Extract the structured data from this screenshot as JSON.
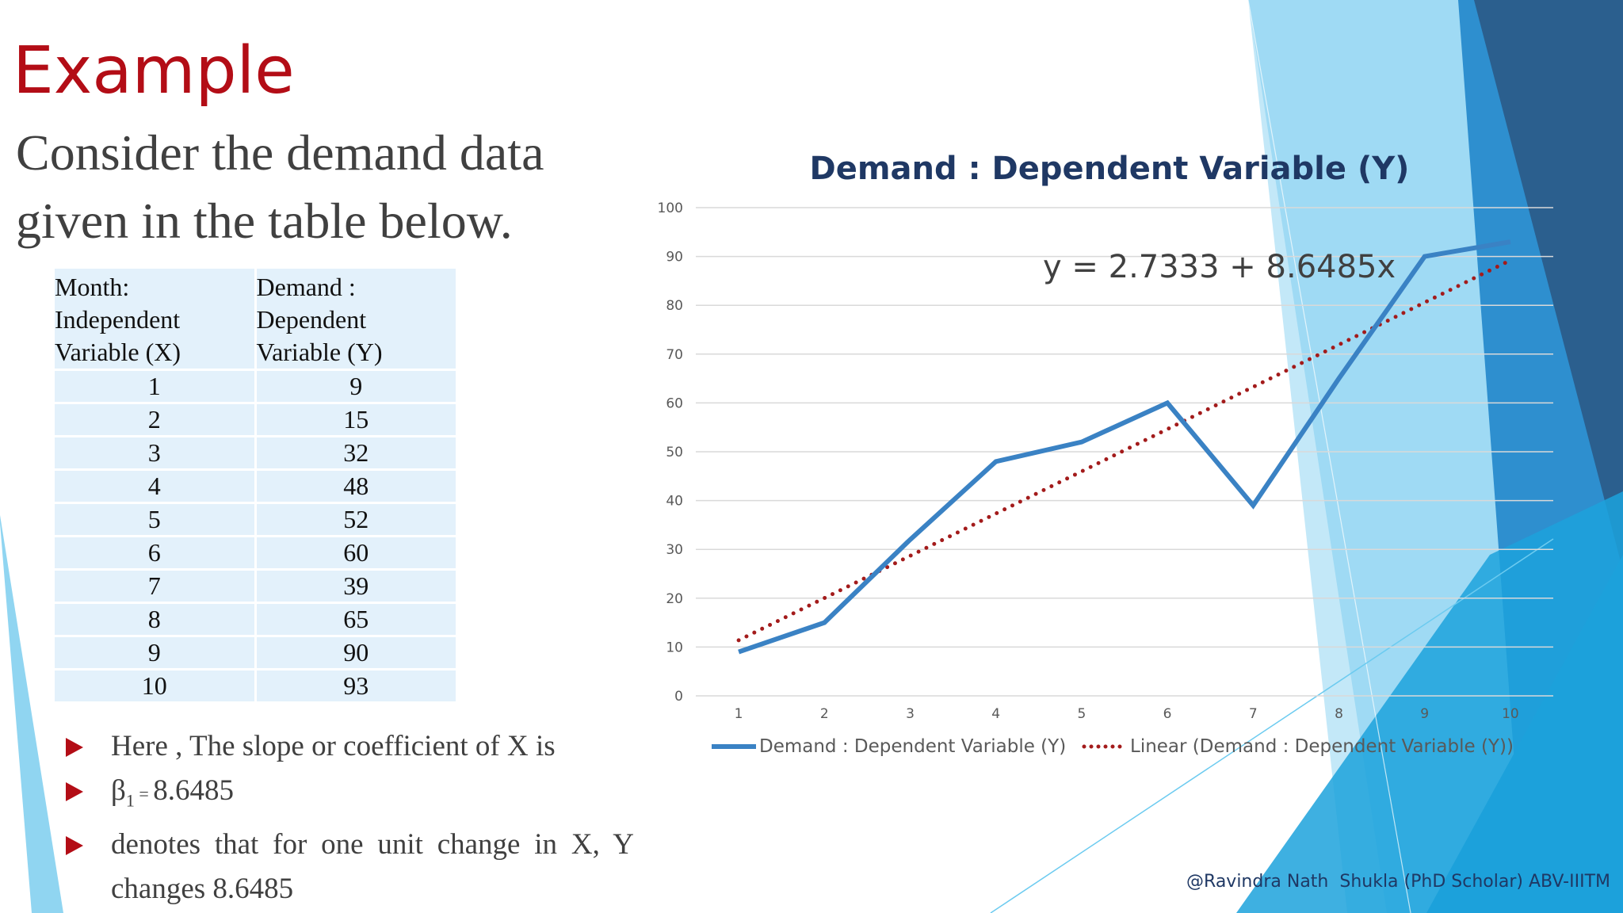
{
  "slide": {
    "title": "Example",
    "intro": "Consider the demand data given in the table below.",
    "footer": "@Ravindra Nath  Shukla (PhD Scholar) ABV-IIITM"
  },
  "table": {
    "headers": [
      "Month: Independent Variable (X)",
      "Demand : Dependent Variable (Y)"
    ],
    "rows": [
      [
        "1",
        "9"
      ],
      [
        "2",
        "15"
      ],
      [
        "3",
        "32"
      ],
      [
        "4",
        "48"
      ],
      [
        "5",
        "52"
      ],
      [
        "6",
        "60"
      ],
      [
        "7",
        "39"
      ],
      [
        "8",
        "65"
      ],
      [
        "9",
        "90"
      ],
      [
        "10",
        "93"
      ]
    ]
  },
  "bullets": {
    "b1": "Here , The slope or coefficient of X is",
    "b2_symbol": "β",
    "b2_sub": "1",
    "b2_eq": " = ",
    "b2_value": "8.6485",
    "b3": "denotes that for one unit change in X, Y changes 8.6485"
  },
  "colors": {
    "title_red": "#b30d16",
    "series_blue": "#3a82c4",
    "trend_red": "#a31b1b",
    "chart_title": "#1f3864",
    "accent_light_blue": "#84d0ef",
    "accent_dark_blue": "#2e6e9e"
  },
  "chart_data": {
    "type": "line",
    "title": "Demand : Dependent Variable (Y)",
    "categories": [
      "1",
      "2",
      "3",
      "4",
      "5",
      "6",
      "7",
      "8",
      "9",
      "10"
    ],
    "series": [
      {
        "name": "Demand : Dependent Variable (Y)",
        "values": [
          9,
          15,
          32,
          48,
          52,
          60,
          39,
          65,
          90,
          93
        ]
      }
    ],
    "trendline": {
      "name": "Linear (Demand : Dependent Variable (Y))",
      "type": "linear",
      "intercept": 2.7333,
      "slope": 8.6485,
      "equation": "y = 2.7333 + 8.6485x"
    },
    "y_ticks": [
      "0",
      "10",
      "20",
      "30",
      "40",
      "50",
      "60",
      "70",
      "80",
      "90",
      "100"
    ],
    "ylim": [
      0,
      100
    ],
    "grid": true,
    "legend_position": "bottom",
    "xlabel": "",
    "ylabel": ""
  }
}
